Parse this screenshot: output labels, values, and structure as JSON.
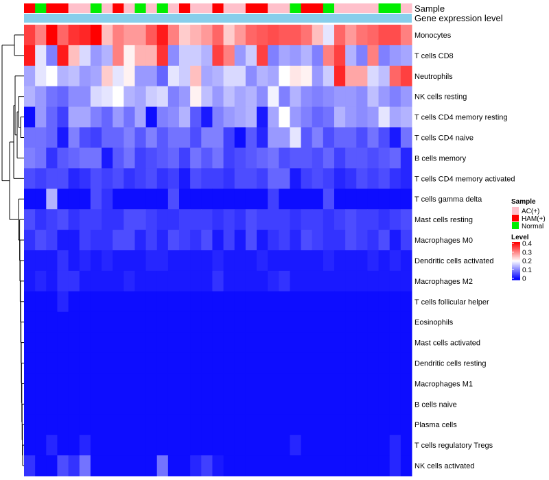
{
  "chart_data": {
    "type": "heatmap",
    "annotation_labels": {
      "sample": "Sample",
      "expression": "Gene expression level"
    },
    "sample_legend": {
      "title": "Sample",
      "entries": [
        {
          "label": "AC(+)",
          "color": "#ffc0cb"
        },
        {
          "label": "HAM(+)",
          "color": "#ff0000"
        },
        {
          "label": "Normal",
          "color": "#00ee00"
        }
      ]
    },
    "level_legend": {
      "title": "Level",
      "ticks": [
        "0.4",
        "0.3",
        "0.2",
        "0.1",
        "0"
      ],
      "range": [
        0,
        0.4
      ],
      "colors": {
        "low": "#0000ff",
        "mid": "#ffffff",
        "high": "#ff0000"
      }
    },
    "expression_bar_color": "#87ceeb",
    "sample_groups": [
      "HAM(+)",
      "Normal",
      "HAM(+)",
      "HAM(+)",
      "AC(+)",
      "AC(+)",
      "Normal",
      "AC(+)",
      "HAM(+)",
      "AC(+)",
      "Normal",
      "AC(+)",
      "Normal",
      "AC(+)",
      "HAM(+)",
      "AC(+)",
      "AC(+)",
      "HAM(+)",
      "AC(+)",
      "AC(+)",
      "HAM(+)",
      "HAM(+)",
      "AC(+)",
      "AC(+)",
      "Normal",
      "HAM(+)",
      "HAM(+)",
      "Normal",
      "AC(+)",
      "AC(+)",
      "AC(+)",
      "AC(+)",
      "Normal",
      "Normal",
      "AC(+)"
    ],
    "rows": [
      "Monocytes",
      "T cells CD8",
      "Neutrophils",
      "NK cells resting",
      "T cells CD4 memory resting",
      "T cells CD4 naive",
      "B cells memory",
      "T cells CD4 memory activated",
      "T cells gamma delta",
      "Mast cells resting",
      "Macrophages M0",
      "Dendritic cells activated",
      "Macrophages M2",
      "T cells follicular helper",
      "Eosinophils",
      "Mast cells activated",
      "Dendritic cells resting",
      "Macrophages M1",
      "B cells naive",
      "Plasma cells",
      "T cells regulatory  Tregs",
      "NK cells activated"
    ],
    "values": [
      [
        0.35,
        0.3,
        0.4,
        0.32,
        0.36,
        0.37,
        0.4,
        0.25,
        0.3,
        0.28,
        0.28,
        0.33,
        0.38,
        0.3,
        0.24,
        0.26,
        0.28,
        0.32,
        0.24,
        0.28,
        0.32,
        0.33,
        0.34,
        0.33,
        0.33,
        0.31,
        0.25,
        0.18,
        0.32,
        0.28,
        0.31,
        0.32,
        0.34,
        0.34,
        0.3
      ],
      [
        0.38,
        0.18,
        0.1,
        0.38,
        0.25,
        0.17,
        0.12,
        0.14,
        0.3,
        0.21,
        0.26,
        0.26,
        0.36,
        0.11,
        0.16,
        0.16,
        0.14,
        0.35,
        0.3,
        0.12,
        0.16,
        0.35,
        0.1,
        0.13,
        0.12,
        0.14,
        0.1,
        0.3,
        0.35,
        0.14,
        0.1,
        0.3,
        0.1,
        0.12,
        0.13
      ],
      [
        0.13,
        0.18,
        0.2,
        0.14,
        0.15,
        0.12,
        0.13,
        0.24,
        0.18,
        0.21,
        0.12,
        0.12,
        0.08,
        0.18,
        0.16,
        0.25,
        0.13,
        0.14,
        0.17,
        0.17,
        0.11,
        0.14,
        0.13,
        0.2,
        0.22,
        0.21,
        0.12,
        0.16,
        0.37,
        0.27,
        0.27,
        0.17,
        0.15,
        0.32,
        0.35
      ],
      [
        0.14,
        0.12,
        0.09,
        0.08,
        0.11,
        0.11,
        0.17,
        0.18,
        0.2,
        0.14,
        0.13,
        0.16,
        0.17,
        0.1,
        0.12,
        0.21,
        0.15,
        0.12,
        0.15,
        0.13,
        0.14,
        0.11,
        0.19,
        0.1,
        0.14,
        0.11,
        0.1,
        0.11,
        0.12,
        0.12,
        0.11,
        0.15,
        0.12,
        0.1,
        0.12
      ],
      [
        0.01,
        0.12,
        0.08,
        0.05,
        0.13,
        0.13,
        0.1,
        0.08,
        0.12,
        0.09,
        0.13,
        0.01,
        0.1,
        0.11,
        0.14,
        0.07,
        0.02,
        0.1,
        0.12,
        0.13,
        0.14,
        0.02,
        0.13,
        0.2,
        0.12,
        0.1,
        0.08,
        0.09,
        0.14,
        0.12,
        0.11,
        0.12,
        0.18,
        0.13,
        0.14
      ],
      [
        0.09,
        0.09,
        0.08,
        0.02,
        0.1,
        0.06,
        0.05,
        0.08,
        0.08,
        0.1,
        0.07,
        0.1,
        0.07,
        0.09,
        0.09,
        0.06,
        0.1,
        0.1,
        0.05,
        0.01,
        0.07,
        0.03,
        0.12,
        0.12,
        0.18,
        0.07,
        0.1,
        0.06,
        0.08,
        0.08,
        0.06,
        0.09,
        0.06,
        0.02,
        0.09
      ],
      [
        0.1,
        0.09,
        0.04,
        0.07,
        0.08,
        0.09,
        0.09,
        0.02,
        0.07,
        0.09,
        0.05,
        0.06,
        0.07,
        0.08,
        0.05,
        0.09,
        0.07,
        0.09,
        0.05,
        0.06,
        0.07,
        0.08,
        0.09,
        0.06,
        0.07,
        0.07,
        0.06,
        0.08,
        0.05,
        0.07,
        0.07,
        0.06,
        0.07,
        0.08,
        0.03
      ],
      [
        0.06,
        0.05,
        0.06,
        0.06,
        0.03,
        0.04,
        0.06,
        0.05,
        0.06,
        0.04,
        0.05,
        0.06,
        0.04,
        0.05,
        0.02,
        0.06,
        0.05,
        0.05,
        0.04,
        0.06,
        0.06,
        0.05,
        0.08,
        0.08,
        0.02,
        0.05,
        0.06,
        0.05,
        0.03,
        0.04,
        0.06,
        0.05,
        0.06,
        0.04,
        0.03
      ],
      [
        0.01,
        0.01,
        0.14,
        0.01,
        0.01,
        0.01,
        0.06,
        0.04,
        0.01,
        0.01,
        0.01,
        0.01,
        0.01,
        0.06,
        0.01,
        0.01,
        0.01,
        0.01,
        0.01,
        0.01,
        0.01,
        0.01,
        0.05,
        0.01,
        0.01,
        0.01,
        0.01,
        0.06,
        0.01,
        0.01,
        0.01,
        0.01,
        0.01,
        0.01,
        0.01
      ],
      [
        0.06,
        0.04,
        0.05,
        0.06,
        0.04,
        0.05,
        0.05,
        0.04,
        0.04,
        0.06,
        0.06,
        0.05,
        0.04,
        0.04,
        0.05,
        0.05,
        0.05,
        0.04,
        0.05,
        0.04,
        0.06,
        0.05,
        0.05,
        0.05,
        0.04,
        0.05,
        0.05,
        0.04,
        0.05,
        0.06,
        0.05,
        0.05,
        0.04,
        0.05,
        0.06
      ],
      [
        0.04,
        0.06,
        0.05,
        0.02,
        0.02,
        0.05,
        0.04,
        0.04,
        0.06,
        0.06,
        0.03,
        0.05,
        0.03,
        0.06,
        0.05,
        0.04,
        0.06,
        0.02,
        0.05,
        0.02,
        0.06,
        0.02,
        0.04,
        0.05,
        0.03,
        0.06,
        0.05,
        0.04,
        0.04,
        0.06,
        0.05,
        0.04,
        0.06,
        0.02,
        0.05
      ],
      [
        0.02,
        0.02,
        0.02,
        0.04,
        0.02,
        0.03,
        0.02,
        0.03,
        0.02,
        0.02,
        0.02,
        0.03,
        0.03,
        0.02,
        0.02,
        0.02,
        0.02,
        0.03,
        0.02,
        0.02,
        0.02,
        0.03,
        0.02,
        0.02,
        0.02,
        0.02,
        0.02,
        0.03,
        0.02,
        0.02,
        0.02,
        0.03,
        0.02,
        0.03,
        0.02
      ],
      [
        0.02,
        0.03,
        0.02,
        0.04,
        0.04,
        0.02,
        0.02,
        0.02,
        0.02,
        0.03,
        0.02,
        0.02,
        0.02,
        0.02,
        0.02,
        0.02,
        0.02,
        0.04,
        0.02,
        0.02,
        0.02,
        0.02,
        0.03,
        0.04,
        0.02,
        0.02,
        0.02,
        0.02,
        0.02,
        0.02,
        0.02,
        0.02,
        0.02,
        0.02,
        0.02
      ],
      [
        0.01,
        0.01,
        0.01,
        0.03,
        0.01,
        0.01,
        0.01,
        0.01,
        0.01,
        0.01,
        0.01,
        0.01,
        0.01,
        0.01,
        0.01,
        0.01,
        0.01,
        0.01,
        0.01,
        0.01,
        0.01,
        0.01,
        0.01,
        0.01,
        0.01,
        0.01,
        0.01,
        0.01,
        0.01,
        0.01,
        0.01,
        0.01,
        0.01,
        0.01,
        0.01
      ],
      [
        0.01,
        0.01,
        0.01,
        0.01,
        0.01,
        0.01,
        0.01,
        0.01,
        0.01,
        0.01,
        0.01,
        0.01,
        0.01,
        0.01,
        0.01,
        0.01,
        0.01,
        0.01,
        0.01,
        0.01,
        0.01,
        0.01,
        0.01,
        0.01,
        0.01,
        0.01,
        0.01,
        0.01,
        0.01,
        0.01,
        0.01,
        0.01,
        0.01,
        0.01,
        0.01
      ],
      [
        0.01,
        0.01,
        0.01,
        0.01,
        0.01,
        0.01,
        0.01,
        0.01,
        0.01,
        0.01,
        0.01,
        0.01,
        0.01,
        0.01,
        0.01,
        0.01,
        0.01,
        0.01,
        0.01,
        0.01,
        0.01,
        0.01,
        0.01,
        0.01,
        0.01,
        0.01,
        0.01,
        0.01,
        0.01,
        0.01,
        0.01,
        0.01,
        0.01,
        0.01,
        0.01
      ],
      [
        0.01,
        0.01,
        0.01,
        0.01,
        0.01,
        0.01,
        0.01,
        0.01,
        0.01,
        0.01,
        0.01,
        0.01,
        0.01,
        0.01,
        0.01,
        0.01,
        0.01,
        0.01,
        0.01,
        0.01,
        0.01,
        0.01,
        0.01,
        0.01,
        0.01,
        0.01,
        0.01,
        0.01,
        0.01,
        0.01,
        0.01,
        0.01,
        0.01,
        0.01,
        0.01
      ],
      [
        0.01,
        0.01,
        0.01,
        0.01,
        0.01,
        0.01,
        0.01,
        0.01,
        0.01,
        0.01,
        0.01,
        0.01,
        0.01,
        0.01,
        0.01,
        0.01,
        0.01,
        0.01,
        0.01,
        0.01,
        0.01,
        0.01,
        0.01,
        0.01,
        0.01,
        0.01,
        0.01,
        0.01,
        0.01,
        0.01,
        0.01,
        0.01,
        0.01,
        0.01,
        0.01
      ],
      [
        0.01,
        0.01,
        0.01,
        0.01,
        0.01,
        0.01,
        0.01,
        0.01,
        0.01,
        0.01,
        0.01,
        0.01,
        0.01,
        0.01,
        0.01,
        0.01,
        0.01,
        0.01,
        0.01,
        0.01,
        0.01,
        0.01,
        0.01,
        0.01,
        0.01,
        0.01,
        0.01,
        0.01,
        0.01,
        0.01,
        0.01,
        0.01,
        0.01,
        0.01,
        0.01
      ],
      [
        0.01,
        0.01,
        0.01,
        0.01,
        0.01,
        0.01,
        0.01,
        0.01,
        0.01,
        0.01,
        0.01,
        0.01,
        0.01,
        0.01,
        0.01,
        0.01,
        0.01,
        0.01,
        0.01,
        0.01,
        0.01,
        0.01,
        0.01,
        0.01,
        0.01,
        0.01,
        0.01,
        0.01,
        0.01,
        0.01,
        0.01,
        0.01,
        0.01,
        0.01,
        0.01
      ],
      [
        0.01,
        0.01,
        0.03,
        0.01,
        0.01,
        0.03,
        0.01,
        0.01,
        0.01,
        0.01,
        0.01,
        0.01,
        0.01,
        0.01,
        0.01,
        0.01,
        0.01,
        0.01,
        0.01,
        0.01,
        0.01,
        0.01,
        0.01,
        0.01,
        0.03,
        0.01,
        0.01,
        0.01,
        0.01,
        0.01,
        0.01,
        0.01,
        0.01,
        0.03,
        0.01
      ],
      [
        0.04,
        0.01,
        0.01,
        0.06,
        0.04,
        0.09,
        0.01,
        0.01,
        0.01,
        0.01,
        0.01,
        0.01,
        0.09,
        0.01,
        0.01,
        0.03,
        0.05,
        0.02,
        0.01,
        0.01,
        0.01,
        0.01,
        0.01,
        0.01,
        0.01,
        0.01,
        0.01,
        0.01,
        0.01,
        0.01,
        0.01,
        0.01,
        0.01,
        0.03,
        0.01
      ]
    ]
  }
}
